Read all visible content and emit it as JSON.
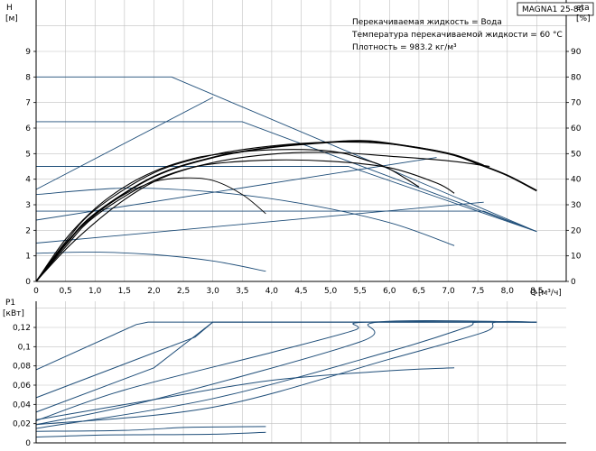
{
  "title": "MAGNA1 25-80",
  "info_lines": [
    "Перекачиваемая жидкость = Вода",
    "Температура перекачиваемой жидкости = 60 °C",
    "Плотность = 983.2 кг/м³"
  ],
  "colors": {
    "curve": "#1f4e79",
    "grid": "#c0c0c0",
    "axis": "#000000"
  },
  "chart_data": [
    {
      "type": "line",
      "ylabel": "H",
      "yunit": "[м]",
      "y2label": "eta",
      "y2unit": "[%]",
      "xlabel": "Q",
      "xunit": "[м³/ч]",
      "xlim": [
        0,
        9
      ],
      "ylim": [
        0,
        10
      ],
      "y2lim": [
        0,
        100
      ],
      "grid": true,
      "x_ticks": [
        "0",
        "0,5",
        "1,0",
        "1,5",
        "2,0",
        "2,5",
        "3,0",
        "3,5",
        "4,0",
        "4,5",
        "5,0",
        "5,5",
        "6,0",
        "6,5",
        "7,0",
        "7,5",
        "8,0",
        "8,5"
      ],
      "y_ticks": [
        "0",
        "1",
        "2",
        "3",
        "4",
        "5",
        "6",
        "7",
        "8",
        "9"
      ],
      "y2_ticks": [
        "0",
        "10",
        "20",
        "30",
        "40",
        "50",
        "60",
        "70",
        "80",
        "90"
      ],
      "head_curves": [
        [
          [
            0,
            8.0
          ],
          [
            2.3,
            8.0
          ],
          [
            8.5,
            1.95
          ]
        ],
        [
          [
            0,
            6.25
          ],
          [
            3.5,
            6.25
          ],
          [
            8.5,
            1.95
          ]
        ],
        [
          [
            0,
            4.5
          ],
          [
            5.3,
            4.5
          ],
          [
            8.5,
            1.95
          ]
        ],
        [
          [
            0,
            2.75
          ],
          [
            7.6,
            2.75
          ],
          [
            8.5,
            1.95
          ]
        ],
        [
          [
            0,
            3.6
          ],
          [
            3.0,
            7.2
          ]
        ],
        [
          [
            0,
            2.4
          ],
          [
            6.8,
            4.85
          ]
        ],
        [
          [
            0,
            1.5
          ],
          [
            7.6,
            3.1
          ]
        ],
        [
          [
            0,
            3.4
          ],
          [
            1.5,
            3.65
          ],
          [
            3.0,
            3.5
          ],
          [
            4.5,
            3.05
          ],
          [
            6.0,
            2.3
          ],
          [
            7.1,
            1.4
          ]
        ],
        [
          [
            0,
            1.1
          ],
          [
            1.0,
            1.15
          ],
          [
            2.0,
            1.05
          ],
          [
            3.0,
            0.8
          ],
          [
            3.9,
            0.4
          ]
        ],
        [
          [
            0,
            0
          ],
          [
            0.5,
            1.5
          ],
          [
            1.0,
            2.6
          ],
          [
            1.5,
            3.4
          ],
          [
            2.0,
            3.9
          ],
          [
            2.5,
            4.05
          ],
          [
            3.0,
            3.95
          ],
          [
            3.5,
            3.4
          ],
          [
            3.9,
            2.65
          ]
        ],
        [
          [
            0,
            0
          ],
          [
            0.5,
            1.25
          ],
          [
            1.0,
            2.3
          ],
          [
            1.5,
            3.2
          ],
          [
            2.0,
            3.9
          ],
          [
            2.5,
            4.35
          ],
          [
            3.0,
            4.6
          ],
          [
            4.0,
            4.75
          ],
          [
            5.0,
            4.7
          ],
          [
            6.0,
            4.45
          ],
          [
            6.8,
            3.85
          ],
          [
            7.1,
            3.45
          ]
        ],
        [
          [
            0,
            0
          ],
          [
            0.5,
            1.65
          ],
          [
            1.0,
            2.85
          ],
          [
            1.5,
            3.7
          ],
          [
            2.0,
            4.3
          ],
          [
            2.5,
            4.7
          ],
          [
            3.0,
            4.95
          ],
          [
            4.0,
            5.15
          ],
          [
            5.0,
            5.1
          ],
          [
            5.6,
            4.75
          ],
          [
            6.0,
            4.4
          ],
          [
            6.5,
            3.7
          ]
        ],
        [
          [
            0,
            0
          ],
          [
            0.5,
            1.35
          ],
          [
            1.0,
            2.55
          ],
          [
            2.0,
            3.95
          ],
          [
            3.0,
            4.65
          ],
          [
            4.0,
            4.98
          ],
          [
            5.0,
            5.05
          ],
          [
            6.0,
            4.9
          ],
          [
            7.0,
            4.72
          ],
          [
            7.7,
            4.5
          ]
        ],
        [
          [
            0,
            0
          ],
          [
            0.5,
            1.55
          ],
          [
            1.0,
            2.8
          ],
          [
            2.0,
            4.25
          ],
          [
            3.0,
            4.95
          ],
          [
            4.0,
            5.3
          ],
          [
            5.0,
            5.45
          ],
          [
            6.0,
            5.38
          ],
          [
            7.0,
            5.02
          ],
          [
            7.6,
            4.55
          ]
        ],
        [
          [
            0,
            0
          ],
          [
            0.5,
            1.45
          ],
          [
            1.0,
            2.65
          ],
          [
            2.0,
            4.1
          ],
          [
            3.0,
            4.85
          ],
          [
            4.0,
            5.25
          ],
          [
            5.0,
            5.45
          ],
          [
            5.5,
            5.5
          ],
          [
            6.0,
            5.4
          ],
          [
            7.0,
            5.0
          ],
          [
            7.5,
            4.6
          ],
          [
            8.0,
            4.15
          ],
          [
            8.5,
            3.55
          ]
        ]
      ]
    },
    {
      "type": "line",
      "ylabel": "P1",
      "yunit": "[кВт]",
      "xlim": [
        0,
        9
      ],
      "ylim": [
        0,
        0.14
      ],
      "grid": true,
      "y_ticks": [
        "0",
        "0,02",
        "0,04",
        "0,06",
        "0,08",
        "0,1",
        "0,12"
      ],
      "power_curves": [
        [
          [
            0,
            0.076
          ],
          [
            1.7,
            0.123
          ],
          [
            1.9,
            0.1255
          ],
          [
            8.5,
            0.1255
          ]
        ],
        [
          [
            0,
            0.047
          ],
          [
            2.7,
            0.11
          ],
          [
            3.0,
            0.1255
          ],
          [
            8.5,
            0.1255
          ]
        ],
        [
          [
            0,
            0.032
          ],
          [
            2.0,
            0.078
          ],
          [
            3.0,
            0.1255
          ],
          [
            8.5,
            0.1255
          ]
        ],
        [
          [
            0,
            0.023
          ],
          [
            1.5,
            0.055
          ],
          [
            4.0,
            0.094
          ],
          [
            5.4,
            0.117
          ],
          [
            5.6,
            0.1255
          ],
          [
            8.5,
            0.1255
          ]
        ],
        [
          [
            0,
            0.019
          ],
          [
            2.0,
            0.045
          ],
          [
            5.5,
            0.105
          ],
          [
            5.8,
            0.1255
          ],
          [
            8.5,
            0.1255
          ]
        ],
        [
          [
            0,
            0.015
          ],
          [
            3.0,
            0.046
          ],
          [
            6.0,
            0.095
          ],
          [
            7.3,
            0.12
          ],
          [
            7.5,
            0.1255
          ],
          [
            8.5,
            0.1255
          ]
        ],
        [
          [
            0,
            0.019
          ],
          [
            3.0,
            0.037
          ],
          [
            6.0,
            0.087
          ],
          [
            7.6,
            0.115
          ],
          [
            7.8,
            0.1255
          ],
          [
            8.5,
            0.1255
          ]
        ],
        [
          [
            0,
            0.024
          ],
          [
            2.0,
            0.045
          ],
          [
            4.0,
            0.065
          ],
          [
            6.0,
            0.075
          ],
          [
            7.1,
            0.078
          ]
        ],
        [
          [
            0,
            0.006
          ],
          [
            1.0,
            0.008
          ],
          [
            2.0,
            0.0085
          ],
          [
            3.0,
            0.009
          ],
          [
            3.9,
            0.011
          ]
        ],
        [
          [
            0,
            0.012
          ],
          [
            1.5,
            0.013
          ],
          [
            2.5,
            0.016
          ],
          [
            3.0,
            0.0165
          ],
          [
            3.9,
            0.017
          ]
        ]
      ]
    }
  ]
}
